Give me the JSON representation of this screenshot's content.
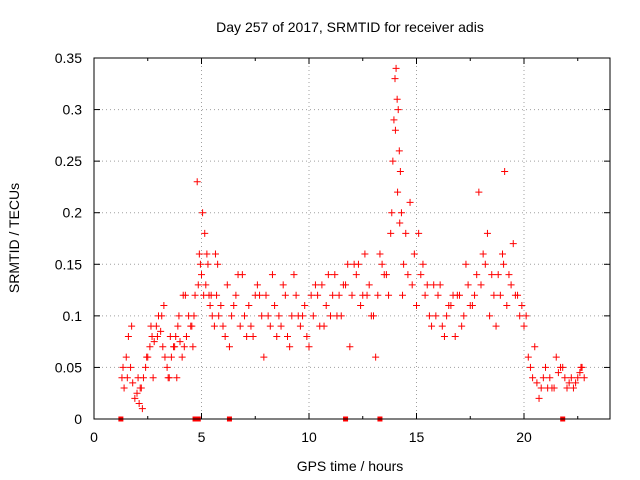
{
  "chart_data": {
    "type": "scatter",
    "title": "Day 257 of 2017, SRMTID for receiver adis",
    "xlabel": "GPS time / hours",
    "ylabel": "SRMTID / TECUs",
    "xlim": [
      0,
      24
    ],
    "ylim": [
      0,
      0.35
    ],
    "xticks": [
      0,
      5,
      10,
      15,
      20
    ],
    "yticks": [
      0,
      0.05,
      0.1,
      0.15,
      0.2,
      0.25,
      0.3,
      0.35
    ],
    "xtick_labels": [
      "0",
      "5",
      "10",
      "15",
      "20"
    ],
    "ytick_labels": [
      "0",
      "0.05",
      "0.1",
      "0.15",
      "0.2",
      "0.25",
      "0.3",
      "0.35"
    ],
    "grid": true,
    "marker": "+",
    "color": "#ff0000",
    "series": [
      {
        "name": "SRMTID",
        "x": [
          1.3,
          1.4,
          1.5,
          1.6,
          1.7,
          1.8,
          1.9,
          2.0,
          2.1,
          2.2,
          2.3,
          2.4,
          2.5,
          2.6,
          2.7,
          2.8,
          2.9,
          3.0,
          3.1,
          3.2,
          3.3,
          3.4,
          3.5,
          3.6,
          3.7,
          3.8,
          3.9,
          4.0,
          4.1,
          4.2,
          4.3,
          4.4,
          4.5,
          4.6,
          4.7,
          4.8,
          4.9,
          5.0,
          5.1,
          5.2,
          5.3,
          5.4,
          5.5,
          5.6,
          5.7,
          5.8,
          5.9,
          6.0,
          6.2,
          6.4,
          6.6,
          6.8,
          7.0,
          7.2,
          7.4,
          7.6,
          7.8,
          8.0,
          8.2,
          8.4,
          8.6,
          8.8,
          9.0,
          9.2,
          9.4,
          9.6,
          9.8,
          10.0,
          10.2,
          10.4,
          10.6,
          10.8,
          11.0,
          11.2,
          11.4,
          11.6,
          11.8,
          12.0,
          12.2,
          12.4,
          12.6,
          12.8,
          13.0,
          13.2,
          13.4,
          13.6,
          13.8,
          13.9,
          14.0,
          14.1,
          14.2,
          14.3,
          14.4,
          14.6,
          14.8,
          15.0,
          15.2,
          15.4,
          15.6,
          15.8,
          16.0,
          16.2,
          16.4,
          16.6,
          16.8,
          17.0,
          17.2,
          17.4,
          17.6,
          17.8,
          18.0,
          18.2,
          18.4,
          18.6,
          18.8,
          19.0,
          19.2,
          19.4,
          19.6,
          19.8,
          20.0,
          20.2,
          20.4,
          20.6,
          20.8,
          21.0,
          21.2,
          21.4,
          21.6,
          21.8,
          22.0,
          22.2,
          22.4,
          22.6,
          22.8,
          1.35,
          1.55,
          1.75,
          2.05,
          2.25,
          2.45,
          2.65,
          2.95,
          3.25,
          3.45,
          3.75,
          3.95,
          4.25,
          4.55,
          4.85,
          5.05,
          5.25,
          5.45,
          5.75,
          6.1,
          6.5,
          6.9,
          7.3,
          7.7,
          8.1,
          8.5,
          8.9,
          9.3,
          9.7,
          10.1,
          10.5,
          10.9,
          11.3,
          11.7,
          12.1,
          12.5,
          12.9,
          13.3,
          13.7,
          13.95,
          14.05,
          14.15,
          14.25,
          14.5,
          14.9,
          15.3,
          15.7,
          16.1,
          16.5,
          16.9,
          17.3,
          17.7,
          18.1,
          18.5,
          18.9,
          19.1,
          19.3,
          19.7,
          20.1,
          20.5,
          20.9,
          21.3,
          21.7,
          22.1,
          22.5,
          22.7,
          2.15,
          2.75,
          3.15,
          3.55,
          3.85,
          4.15,
          4.65,
          4.95,
          5.15,
          5.35,
          5.65,
          6.3,
          6.7,
          7.1,
          7.5,
          7.9,
          8.3,
          8.7,
          9.1,
          9.5,
          9.9,
          10.3,
          10.7,
          11.1,
          11.5,
          11.9,
          12.3,
          12.7,
          13.1,
          13.5,
          13.85,
          14.02,
          14.12,
          14.22,
          14.35,
          14.7,
          15.1,
          15.5,
          15.9,
          16.3,
          16.7,
          17.1,
          17.5,
          17.9,
          18.3,
          18.7,
          19.05,
          19.5,
          19.9,
          20.3,
          20.7,
          21.1,
          21.5,
          21.9,
          22.3,
          22.65
        ],
        "y": [
          0.04,
          0.03,
          0.06,
          0.08,
          0.05,
          0.035,
          0.02,
          0.025,
          0.015,
          0.03,
          0.04,
          0.05,
          0.06,
          0.07,
          0.08,
          0.075,
          0.09,
          0.1,
          0.085,
          0.07,
          0.06,
          0.05,
          0.04,
          0.06,
          0.07,
          0.08,
          0.09,
          0.075,
          0.06,
          0.07,
          0.08,
          0.1,
          0.09,
          0.07,
          0.12,
          0.23,
          0.16,
          0.14,
          0.12,
          0.13,
          0.15,
          0.11,
          0.1,
          0.09,
          0.12,
          0.1,
          0.11,
          0.09,
          0.13,
          0.1,
          0.12,
          0.09,
          0.1,
          0.11,
          0.08,
          0.13,
          0.1,
          0.12,
          0.09,
          0.11,
          0.1,
          0.13,
          0.08,
          0.1,
          0.12,
          0.09,
          0.11,
          0.07,
          0.1,
          0.12,
          0.13,
          0.11,
          0.1,
          0.14,
          0.12,
          0.13,
          0.15,
          0.12,
          0.14,
          0.11,
          0.16,
          0.13,
          0.1,
          0.12,
          0.15,
          0.14,
          0.18,
          0.25,
          0.33,
          0.31,
          0.26,
          0.2,
          0.15,
          0.14,
          0.13,
          0.11,
          0.14,
          0.12,
          0.1,
          0.13,
          0.12,
          0.09,
          0.1,
          0.11,
          0.08,
          0.12,
          0.1,
          0.13,
          0.11,
          0.14,
          0.13,
          0.15,
          0.1,
          0.12,
          0.14,
          0.16,
          0.11,
          0.13,
          0.12,
          0.1,
          0.09,
          0.06,
          0.04,
          0.035,
          0.03,
          0.05,
          0.04,
          0.03,
          0.045,
          0.05,
          0.03,
          0.04,
          0.035,
          0.045,
          0.04,
          0.05,
          0.04,
          0.09,
          0.04,
          0.01,
          0.06,
          0.09,
          0.08,
          0.11,
          0.04,
          0.07,
          0.1,
          0.12,
          0.09,
          0.13,
          0.2,
          0.16,
          0.12,
          0.15,
          0.08,
          0.11,
          0.14,
          0.09,
          0.12,
          0.1,
          0.08,
          0.12,
          0.14,
          0.1,
          0.12,
          0.09,
          0.14,
          0.1,
          0.13,
          0.15,
          0.12,
          0.1,
          0.16,
          0.12,
          0.29,
          0.34,
          0.3,
          0.24,
          0.18,
          0.16,
          0.15,
          0.09,
          0.13,
          0.11,
          0.12,
          0.15,
          0.12,
          0.16,
          0.14,
          0.12,
          0.24,
          0.14,
          0.12,
          0.1,
          0.07,
          0.04,
          0.03,
          0.05,
          0.035,
          0.04,
          0.05,
          0.03,
          0.04,
          0.1,
          0.08,
          0.04,
          0.12,
          0.1,
          0.15,
          0.18,
          0.12,
          0.16,
          0.07,
          0.14,
          0.08,
          0.12,
          0.06,
          0.14,
          0.09,
          0.07,
          0.1,
          0.08,
          0.13,
          0.09,
          0.12,
          0.1,
          0.07,
          0.15,
          0.12,
          0.06,
          0.14,
          0.2,
          0.28,
          0.22,
          0.19,
          0.12,
          0.21,
          0.18,
          0.13,
          0.1,
          0.08,
          0.12,
          0.09,
          0.11,
          0.22,
          0.18,
          0.09,
          0.15,
          0.17,
          0.11,
          0.05,
          0.02,
          0.03,
          0.06,
          0.04,
          0.03,
          0.05
        ]
      }
    ],
    "bottom_markers_x": [
      1.25,
      4.7,
      4.85,
      6.3,
      11.7,
      13.3,
      21.8
    ]
  }
}
